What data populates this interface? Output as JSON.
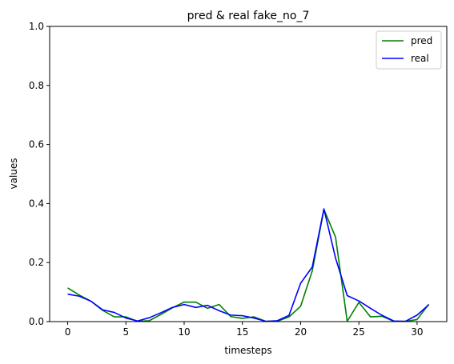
{
  "chart_data": {
    "type": "line",
    "title": "pred & real fake_no_7",
    "xlabel": "timesteps",
    "ylabel": "values",
    "xlim": [
      -1.55,
      32.55
    ],
    "ylim": [
      0,
      1.0
    ],
    "xticks": [
      0,
      5,
      10,
      15,
      20,
      25,
      30
    ],
    "yticks": [
      0.0,
      0.2,
      0.4,
      0.6,
      0.8,
      1.0
    ],
    "grid": false,
    "legend_position": "top-right",
    "x": [
      0,
      1,
      2,
      3,
      4,
      5,
      6,
      7,
      8,
      9,
      10,
      11,
      12,
      13,
      14,
      15,
      16,
      17,
      18,
      19,
      20,
      21,
      22,
      23,
      24,
      25,
      26,
      27,
      28,
      29,
      30,
      31
    ],
    "series": [
      {
        "name": "pred",
        "color": "#008000",
        "values": [
          0.114,
          0.09,
          0.069,
          0.038,
          0.016,
          0.016,
          0.001,
          0.003,
          0.024,
          0.047,
          0.066,
          0.066,
          0.045,
          0.058,
          0.017,
          0.011,
          0.016,
          0.001,
          0.001,
          0.016,
          0.052,
          0.172,
          0.38,
          0.286,
          0.001,
          0.065,
          0.016,
          0.018,
          0.001,
          0.001,
          0.007,
          0.059
        ]
      },
      {
        "name": "real",
        "color": "#0000ff",
        "values": [
          0.093,
          0.086,
          0.069,
          0.04,
          0.031,
          0.012,
          0.002,
          0.013,
          0.03,
          0.048,
          0.058,
          0.048,
          0.055,
          0.037,
          0.022,
          0.02,
          0.012,
          0.001,
          0.003,
          0.021,
          0.13,
          0.185,
          0.382,
          0.215,
          0.088,
          0.07,
          0.045,
          0.021,
          0.002,
          0.001,
          0.022,
          0.057
        ]
      }
    ]
  }
}
